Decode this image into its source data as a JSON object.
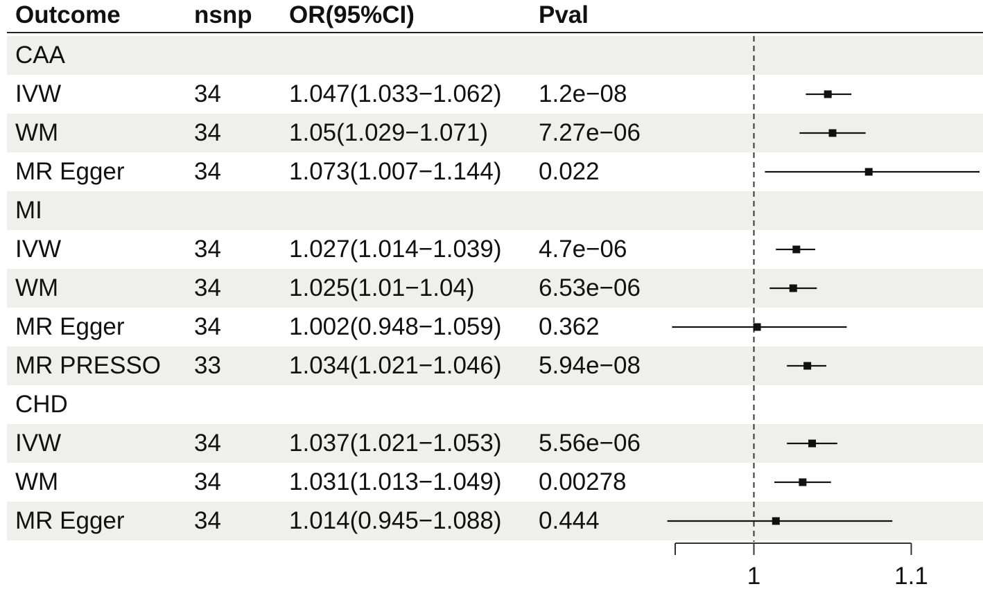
{
  "headers": {
    "outcome": "Outcome",
    "nsnp": "nsnp",
    "or": "OR(95%CI)",
    "pval": "Pval"
  },
  "rows": [
    {
      "outcome": "CAA",
      "nsnp": "",
      "or": "",
      "pval": "",
      "group": true
    },
    {
      "outcome": "IVW",
      "nsnp": "34",
      "or": "1.047(1.033−1.062)",
      "pval": "1.2e−08"
    },
    {
      "outcome": "WM",
      "nsnp": "34",
      "or": "1.05(1.029−1.071)",
      "pval": "7.27e−06"
    },
    {
      "outcome": "MR Egger",
      "nsnp": "34",
      "or": "1.073(1.007−1.144)",
      "pval": "0.022"
    },
    {
      "outcome": "MI",
      "nsnp": "",
      "or": "",
      "pval": "",
      "group": true
    },
    {
      "outcome": "IVW",
      "nsnp": "34",
      "or": "1.027(1.014−1.039)",
      "pval": "4.7e−06"
    },
    {
      "outcome": "WM",
      "nsnp": "34",
      "or": "1.025(1.01−1.04)",
      "pval": "6.53e−06"
    },
    {
      "outcome": "MR Egger",
      "nsnp": "34",
      "or": "1.002(0.948−1.059)",
      "pval": "0.362"
    },
    {
      "outcome": "MR PRESSO",
      "nsnp": "33",
      "or": "1.034(1.021−1.046)",
      "pval": "5.94e−08"
    },
    {
      "outcome": "CHD",
      "nsnp": "",
      "or": "",
      "pval": "",
      "group": true
    },
    {
      "outcome": "IVW",
      "nsnp": "34",
      "or": "1.037(1.021−1.053)",
      "pval": "5.56e−06"
    },
    {
      "outcome": "WM",
      "nsnp": "34",
      "or": "1.031(1.013−1.049)",
      "pval": "0.00278"
    },
    {
      "outcome": "MR Egger",
      "nsnp": "34",
      "or": "1.014(0.945−1.088)",
      "pval": "0.444"
    }
  ],
  "chart_data": {
    "type": "forest",
    "reference_line": 1,
    "xlim": [
      0.95,
      1.145
    ],
    "ticks": [
      0.95,
      1,
      1.1
    ],
    "tick_labels": [
      "",
      "1",
      "1.1"
    ],
    "points": [
      {
        "row": 1,
        "est": 1.047,
        "lo": 1.033,
        "hi": 1.062
      },
      {
        "row": 2,
        "est": 1.05,
        "lo": 1.029,
        "hi": 1.071
      },
      {
        "row": 3,
        "est": 1.073,
        "lo": 1.007,
        "hi": 1.144
      },
      {
        "row": 5,
        "est": 1.027,
        "lo": 1.014,
        "hi": 1.039
      },
      {
        "row": 6,
        "est": 1.025,
        "lo": 1.01,
        "hi": 1.04
      },
      {
        "row": 7,
        "est": 1.002,
        "lo": 0.948,
        "hi": 1.059
      },
      {
        "row": 8,
        "est": 1.034,
        "lo": 1.021,
        "hi": 1.046
      },
      {
        "row": 10,
        "est": 1.037,
        "lo": 1.021,
        "hi": 1.053
      },
      {
        "row": 11,
        "est": 1.031,
        "lo": 1.013,
        "hi": 1.049
      },
      {
        "row": 12,
        "est": 1.014,
        "lo": 0.945,
        "hi": 1.088
      }
    ]
  }
}
